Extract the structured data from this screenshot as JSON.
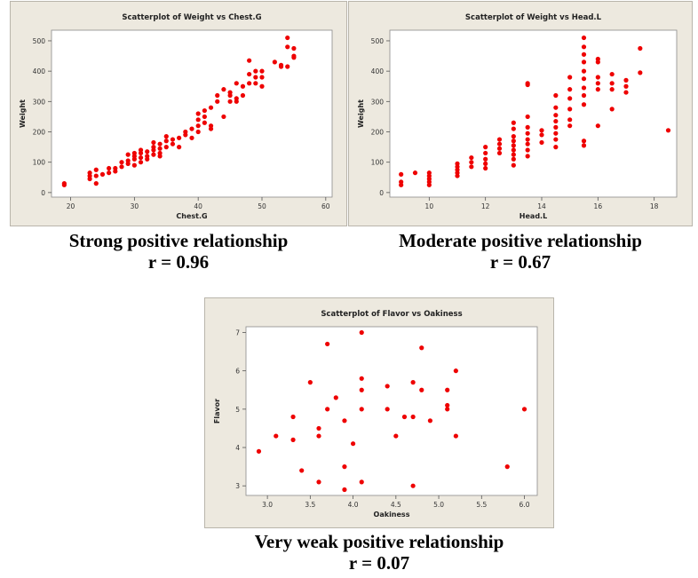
{
  "chart_data": [
    {
      "type": "scatter",
      "title": "Scatterplot of Weight vs Chest.G",
      "xlabel": "Chest.G",
      "ylabel": "Weight",
      "xlim": [
        17,
        61
      ],
      "ylim": [
        -15,
        535
      ],
      "xticks": [
        20,
        30,
        40,
        50,
        60
      ],
      "yticks": [
        0,
        100,
        200,
        300,
        400,
        500
      ],
      "caption": "Strong positive relationship",
      "r_label": "r = 0.96",
      "points": [
        [
          19,
          30
        ],
        [
          19,
          25
        ],
        [
          23,
          45
        ],
        [
          23,
          55
        ],
        [
          23,
          65
        ],
        [
          24,
          30
        ],
        [
          24,
          55
        ],
        [
          24,
          75
        ],
        [
          25,
          60
        ],
        [
          26,
          65
        ],
        [
          26,
          80
        ],
        [
          27,
          70
        ],
        [
          27,
          80
        ],
        [
          28,
          100
        ],
        [
          28,
          85
        ],
        [
          29,
          105
        ],
        [
          29,
          125
        ],
        [
          29,
          95
        ],
        [
          30,
          110
        ],
        [
          30,
          90
        ],
        [
          30,
          120
        ],
        [
          30,
          130
        ],
        [
          31,
          115
        ],
        [
          31,
          100
        ],
        [
          31,
          130
        ],
        [
          31,
          140
        ],
        [
          32,
          120
        ],
        [
          32,
          135
        ],
        [
          32,
          110
        ],
        [
          33,
          140
        ],
        [
          33,
          150
        ],
        [
          33,
          125
        ],
        [
          33,
          165
        ],
        [
          34,
          130
        ],
        [
          34,
          145
        ],
        [
          34,
          160
        ],
        [
          34,
          120
        ],
        [
          35,
          150
        ],
        [
          35,
          170
        ],
        [
          35,
          185
        ],
        [
          36,
          160
        ],
        [
          36,
          175
        ],
        [
          37,
          180
        ],
        [
          37,
          150
        ],
        [
          38,
          190
        ],
        [
          38,
          200
        ],
        [
          39,
          210
        ],
        [
          39,
          180
        ],
        [
          40,
          200
        ],
        [
          40,
          220
        ],
        [
          40,
          240
        ],
        [
          40,
          260
        ],
        [
          41,
          230
        ],
        [
          41,
          250
        ],
        [
          41,
          270
        ],
        [
          42,
          280
        ],
        [
          42,
          210
        ],
        [
          42,
          220
        ],
        [
          43,
          300
        ],
        [
          43,
          320
        ],
        [
          44,
          250
        ],
        [
          44,
          340
        ],
        [
          45,
          300
        ],
        [
          45,
          320
        ],
        [
          45,
          330
        ],
        [
          46,
          360
        ],
        [
          46,
          300
        ],
        [
          46,
          310
        ],
        [
          47,
          320
        ],
        [
          47,
          350
        ],
        [
          48,
          435
        ],
        [
          48,
          390
        ],
        [
          48,
          360
        ],
        [
          49,
          360
        ],
        [
          49,
          380
        ],
        [
          49,
          400
        ],
        [
          50,
          350
        ],
        [
          50,
          380
        ],
        [
          50,
          400
        ],
        [
          52,
          430
        ],
        [
          53,
          415
        ],
        [
          53,
          420
        ],
        [
          54,
          415
        ],
        [
          54,
          510
        ],
        [
          54,
          480
        ],
        [
          55,
          450
        ],
        [
          55,
          475
        ],
        [
          55,
          445
        ]
      ]
    },
    {
      "type": "scatter",
      "title": "Scatterplot of Weight vs Head.L",
      "xlabel": "Head.L",
      "ylabel": "Weight",
      "xlim": [
        8.6,
        18.8
      ],
      "ylim": [
        -15,
        535
      ],
      "xticks": [
        10,
        12,
        14,
        16,
        18
      ],
      "yticks": [
        0,
        100,
        200,
        300,
        400,
        500
      ],
      "caption": "Moderate positive relationship",
      "r_label": "r = 0.67",
      "points": [
        [
          9,
          60
        ],
        [
          9,
          35
        ],
        [
          9,
          25
        ],
        [
          9.5,
          65
        ],
        [
          10,
          65
        ],
        [
          10,
          55
        ],
        [
          10,
          45
        ],
        [
          10,
          35
        ],
        [
          10,
          25
        ],
        [
          11,
          95
        ],
        [
          11,
          85
        ],
        [
          11,
          75
        ],
        [
          11,
          65
        ],
        [
          11,
          55
        ],
        [
          11.5,
          115
        ],
        [
          11.5,
          100
        ],
        [
          11.5,
          85
        ],
        [
          12,
          150
        ],
        [
          12,
          130
        ],
        [
          12,
          110
        ],
        [
          12,
          95
        ],
        [
          12,
          80
        ],
        [
          12.5,
          175
        ],
        [
          12.5,
          160
        ],
        [
          12.5,
          145
        ],
        [
          12.5,
          130
        ],
        [
          13,
          230
        ],
        [
          13,
          210
        ],
        [
          13,
          185
        ],
        [
          13,
          170
        ],
        [
          13,
          155
        ],
        [
          13,
          140
        ],
        [
          13,
          125
        ],
        [
          13,
          110
        ],
        [
          13,
          90
        ],
        [
          13.5,
          360
        ],
        [
          13.5,
          355
        ],
        [
          13.5,
          250
        ],
        [
          13.5,
          215
        ],
        [
          13.5,
          195
        ],
        [
          13.5,
          175
        ],
        [
          13.5,
          160
        ],
        [
          13.5,
          140
        ],
        [
          13.5,
          120
        ],
        [
          14,
          205
        ],
        [
          14,
          190
        ],
        [
          14,
          165
        ],
        [
          14.5,
          320
        ],
        [
          14.5,
          280
        ],
        [
          14.5,
          255
        ],
        [
          14.5,
          235
        ],
        [
          14.5,
          215
        ],
        [
          14.5,
          195
        ],
        [
          14.5,
          175
        ],
        [
          14.5,
          150
        ],
        [
          15,
          380
        ],
        [
          15,
          340
        ],
        [
          15,
          310
        ],
        [
          15,
          275
        ],
        [
          15,
          240
        ],
        [
          15,
          220
        ],
        [
          15.5,
          510
        ],
        [
          15.5,
          480
        ],
        [
          15.5,
          455
        ],
        [
          15.5,
          430
        ],
        [
          15.5,
          400
        ],
        [
          15.5,
          375
        ],
        [
          15.5,
          345
        ],
        [
          15.5,
          320
        ],
        [
          15.5,
          290
        ],
        [
          15.5,
          170
        ],
        [
          15.5,
          155
        ],
        [
          16,
          440
        ],
        [
          16,
          430
        ],
        [
          16,
          380
        ],
        [
          16,
          360
        ],
        [
          16,
          340
        ],
        [
          16,
          220
        ],
        [
          16.5,
          390
        ],
        [
          16.5,
          360
        ],
        [
          16.5,
          340
        ],
        [
          16.5,
          275
        ],
        [
          17,
          370
        ],
        [
          17,
          350
        ],
        [
          17,
          330
        ],
        [
          17.5,
          475
        ],
        [
          17.5,
          395
        ],
        [
          18.5,
          205
        ]
      ]
    },
    {
      "type": "scatter",
      "title": "Scatterplot of Flavor vs Oakiness",
      "xlabel": "Oakiness",
      "ylabel": "Flavor",
      "xlim": [
        2.75,
        6.15
      ],
      "ylim": [
        2.75,
        7.15
      ],
      "xticks": [
        3.0,
        3.5,
        4.0,
        4.5,
        5.0,
        5.5,
        6.0
      ],
      "yticks": [
        3,
        4,
        5,
        6,
        7
      ],
      "caption": "Very weak positive relationship",
      "r_label": "r = 0.07",
      "points": [
        [
          2.9,
          3.9
        ],
        [
          3.1,
          4.3
        ],
        [
          3.3,
          4.8
        ],
        [
          3.3,
          4.2
        ],
        [
          3.4,
          3.4
        ],
        [
          3.5,
          5.7
        ],
        [
          3.6,
          4.5
        ],
        [
          3.6,
          4.3
        ],
        [
          3.6,
          3.1
        ],
        [
          3.7,
          6.7
        ],
        [
          3.7,
          5.0
        ],
        [
          3.8,
          5.3
        ],
        [
          3.9,
          4.7
        ],
        [
          3.9,
          3.5
        ],
        [
          3.9,
          2.9
        ],
        [
          4.0,
          4.1
        ],
        [
          4.1,
          7.0
        ],
        [
          4.1,
          5.8
        ],
        [
          4.1,
          5.5
        ],
        [
          4.1,
          5.0
        ],
        [
          4.1,
          3.1
        ],
        [
          4.4,
          5.6
        ],
        [
          4.4,
          5.0
        ],
        [
          4.5,
          4.3
        ],
        [
          4.6,
          4.8
        ],
        [
          4.7,
          5.7
        ],
        [
          4.7,
          4.8
        ],
        [
          4.7,
          3.0
        ],
        [
          4.8,
          6.6
        ],
        [
          4.8,
          5.5
        ],
        [
          4.9,
          4.7
        ],
        [
          5.1,
          5.5
        ],
        [
          5.1,
          5.1
        ],
        [
          5.1,
          5.0
        ],
        [
          5.2,
          6.0
        ],
        [
          5.2,
          4.3
        ],
        [
          5.8,
          3.5
        ],
        [
          6.0,
          5.0
        ]
      ]
    }
  ],
  "style": {
    "point_color": "#ee0000",
    "panel_bg": "#ede9df",
    "plot_bg": "#ffffff"
  }
}
